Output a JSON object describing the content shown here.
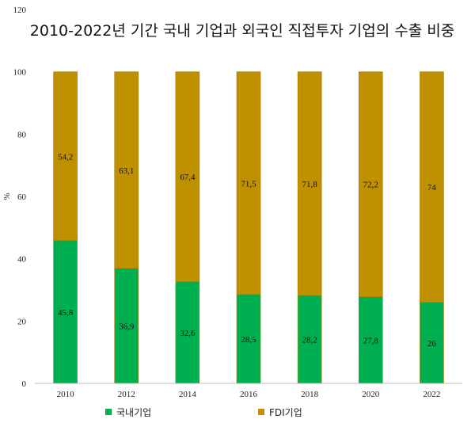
{
  "chart_data": {
    "type": "bar",
    "stacked": true,
    "title": "2010-2022년 기간 국내 기업과 외국인 직접투자 기업의 수출 비중",
    "xlabel": "",
    "ylabel": "%",
    "categories": [
      "2010",
      "2012",
      "2014",
      "2016",
      "2018",
      "2020",
      "2022"
    ],
    "ylim": [
      0,
      120
    ],
    "yticks": [
      "0",
      "20",
      "40",
      "60",
      "80",
      "100",
      "120"
    ],
    "grid": false,
    "legend_position": "bottom",
    "series": [
      {
        "name": "국내기업",
        "color": "#00b050",
        "values": [
          45.8,
          36.9,
          32.6,
          28.5,
          28.2,
          27.8,
          26
        ],
        "labels": [
          "45,8",
          "36,9",
          "32,6",
          "28,5",
          "28,2",
          "27,8",
          "26"
        ]
      },
      {
        "name": "FDI기업",
        "color": "#bf9000",
        "values": [
          54.2,
          63.1,
          67.4,
          71.5,
          71.8,
          72.2,
          74
        ],
        "labels": [
          "54,2",
          "63,1",
          "67,4",
          "71,5",
          "71,8",
          "72,2",
          "74"
        ]
      }
    ]
  }
}
